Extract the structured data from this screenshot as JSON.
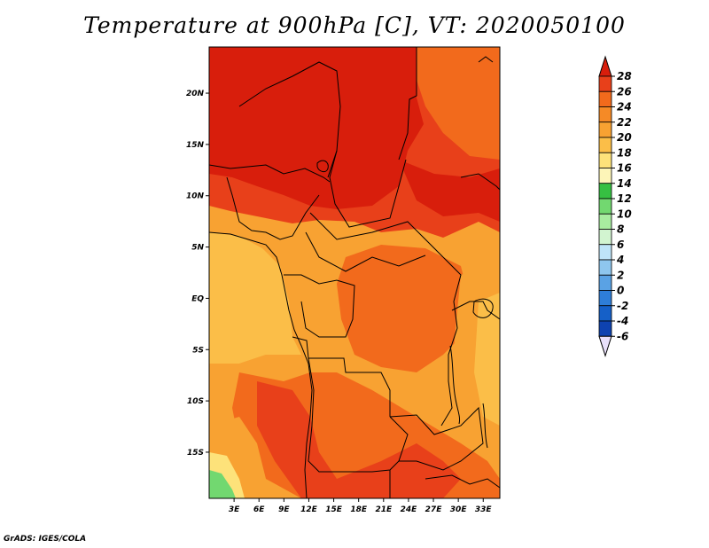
{
  "title": "Temperature at 900hPa [C], VT: 2020050100",
  "credit": "GrADS: IGES/COLA",
  "map": {
    "lat_labels": [
      "20N",
      "15N",
      "10N",
      "5N",
      "EQ",
      "5S",
      "10S",
      "15S"
    ],
    "lat_values": [
      20,
      15,
      10,
      5,
      0,
      -5,
      -10,
      -15
    ],
    "lon_labels": [
      "3E",
      "6E",
      "9E",
      "12E",
      "15E",
      "18E",
      "21E",
      "24E",
      "27E",
      "30E",
      "33E"
    ],
    "lon_values": [
      3,
      6,
      9,
      12,
      15,
      18,
      21,
      24,
      27,
      30,
      33
    ],
    "lat_range": [
      -19.5,
      24.5
    ],
    "lon_range": [
      0,
      35
    ],
    "colors": {
      "c28": "#d81e0c",
      "c26": "#e8401a",
      "c24": "#f26a1c",
      "c22": "#f8a232",
      "c20": "#fbbe48",
      "c18": "#fde27a",
      "c16": "#fdf5b8",
      "c14": "#36c042",
      "c12": "#72d870",
      "border": "#000000"
    }
  },
  "colorbar": {
    "labels": [
      "28",
      "26",
      "24",
      "22",
      "20",
      "18",
      "16",
      "14",
      "12",
      "10",
      "8",
      "6",
      "4",
      "2",
      "0",
      "-2",
      "-4",
      "-6"
    ],
    "colors": [
      "#e8401a",
      "#f26a1c",
      "#f58a26",
      "#f8a232",
      "#fbbe48",
      "#fde27a",
      "#fdf5b8",
      "#36c042",
      "#72d870",
      "#a8eca0",
      "#d2f4d0",
      "#bfe4f8",
      "#8ec6ee",
      "#5aa2e4",
      "#2e7ed8",
      "#1560c8",
      "#0e42b0",
      "#08227e"
    ],
    "top_color": "#d81e0c",
    "bottom_color": "#e8e0fa"
  }
}
